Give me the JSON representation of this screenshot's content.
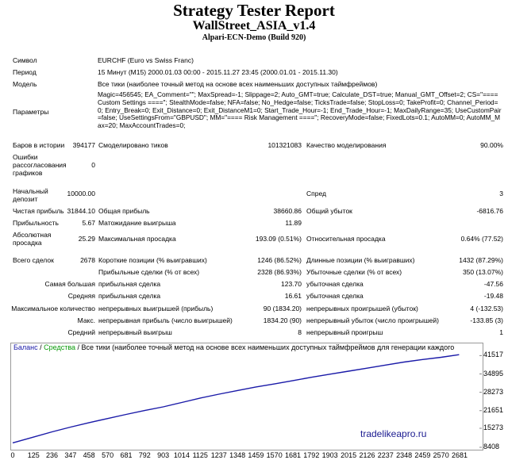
{
  "report": {
    "title": "Strategy Tester Report",
    "expert": "WallStreet_ASIA_v1.4",
    "server": "Alpari-ECN-Demo (Build 920)"
  },
  "info": {
    "symbol_label": "Символ",
    "symbol_value": "EURCHF (Euro vs Swiss Franc)",
    "period_label": "Период",
    "period_value": "15 Минут (M15) 2000.01.03 00:00 - 2015.11.27 23:45 (2000.01.01 - 2015.11.30)",
    "model_label": "Модель",
    "model_value": "Все тики (наиболее точный метод на основе всех наименьших доступных таймфреймов)",
    "params_label": "Параметры",
    "params_value": "Magic=456545; EA_Comment=\"\"; MaxSpread=-1; Slippage=2; Auto_GMT=true; Calculate_DST=true; Manual_GMT_Offset=2; CS=\"==== Custom Settings ====\"; StealthMode=false; NFA=false; No_Hedge=false; TicksTrade=false; StopLoss=0; TakeProfit=0; Channel_Period=0; Entry_Break=0; Exit_Distance=0; Exit_DistanceM1=0; Start_Trade_Hour=-1; End_Trade_Hour=-1; MaxDailyRange=35; UseCustomPair=false; UseSettingsFrom=\"GBPUSD\"; MM=\"==== Risk Management ====\"; RecoveryMode=false; FixedLots=0.1; AutoMM=0; AutoMM_Max=20; MaxAccountTrades=0;"
  },
  "stats": {
    "bars_label": "Баров в истории",
    "bars_value": "394177",
    "ticks_label": "Смоделировано тиков",
    "ticks_value": "101321083",
    "quality_label": "Качество моделирования",
    "quality_value": "90.00%",
    "errors_label": "Ошибки рассогласования графиков",
    "errors_value": "0",
    "deposit_label": "Начальный депозит",
    "deposit_value": "10000.00",
    "spread_label": "Спред",
    "spread_value": "3",
    "netprofit_label": "Чистая прибыль",
    "netprofit_value": "31844.10",
    "grossprofit_label": "Общая прибыль",
    "grossprofit_value": "38660.86",
    "grossloss_label": "Общий убыток",
    "grossloss_value": "-6816.76",
    "pf_label": "Прибыльность",
    "pf_value": "5.67",
    "expected_label": "Матожидание выигрыша",
    "expected_value": "11.89",
    "absdd_label": "Абсолютная просадка",
    "absdd_value": "25.29",
    "maxdd_label": "Максимальная просадка",
    "maxdd_value": "193.09 (0.51%)",
    "reldd_label": "Относительная просадка",
    "reldd_value": "0.64% (77.52)",
    "trades_label": "Всего сделок",
    "trades_value": "2678",
    "short_label": "Короткие позиции (% выигравших)",
    "short_value": "1246 (86.52%)",
    "long_label": "Длинные позиции (% выигравших)",
    "long_value": "1432 (87.29%)",
    "profit_trades_label": "Прибыльные сделки (% от всех)",
    "profit_trades_value": "2328 (86.93%)",
    "loss_trades_label": "Убыточные сделки (% от всех)",
    "loss_trades_value": "350 (13.07%)",
    "largest_label": "Самая большая",
    "largest_profit_label": "прибыльная сделка",
    "largest_profit_value": "123.70",
    "largest_loss_label": "убыточная сделка",
    "largest_loss_value": "-47.56",
    "average_label": "Средняя",
    "average_profit_label": "прибыльная сделка",
    "average_profit_value": "16.61",
    "average_loss_label": "убыточная сделка",
    "average_loss_value": "-19.48",
    "maxcount_label": "Максимальное количество",
    "maxcons_wins_label": "непрерывных выигрышей (прибыль)",
    "maxcons_wins_value": "90 (1834.20)",
    "maxcons_losses_label": "непрерывных проигрышей (убыток)",
    "maxcons_losses_value": "4 (-132.53)",
    "maximal_label": "Макс.",
    "maxcons_profit_label": "непрерывная прибыль (число выигрышей)",
    "maxcons_profit_value": "1834.20 (90)",
    "maxcons_loss_label": "непрерывный убыток (число проигрышей)",
    "maxcons_loss_value": "-133.85 (3)",
    "avgcons_label": "Средний",
    "avgcons_wins_label": "непрерывный выигрыш",
    "avgcons_wins_value": "8",
    "avgcons_losses_label": "непрерывный проигрыш",
    "avgcons_losses_value": "1"
  },
  "chart_head": {
    "balance": "Баланс",
    "sep1": " / ",
    "equity": "Средства",
    "sep2": " / ",
    "model": "Все тики (наиболее точный метод на основе всех наименьших доступных таймфреймов для генерации каждого"
  },
  "watermark": "tradelikeapro.ru",
  "chart_data": {
    "type": "line",
    "title": "",
    "xlabel": "",
    "ylabel": "",
    "x_ticks": [
      0,
      125,
      236,
      347,
      458,
      570,
      681,
      792,
      903,
      1014,
      1125,
      1237,
      1348,
      1459,
      1570,
      1681,
      1792,
      1903,
      2015,
      2126,
      2237,
      2348,
      2459,
      2570,
      2681
    ],
    "y_ticks": [
      "8408",
      "15273",
      "21651",
      "28273",
      "34895",
      "41517"
    ],
    "xlim": [
      0,
      2800
    ],
    "ylim": [
      8408,
      42200
    ],
    "series": [
      {
        "name": "Баланс",
        "color": "#1a1aa8",
        "x": [
          0,
          125,
          236,
          347,
          458,
          570,
          681,
          792,
          903,
          1014,
          1125,
          1237,
          1348,
          1459,
          1570,
          1681,
          1792,
          1903,
          2015,
          2126,
          2237,
          2348,
          2459,
          2570,
          2678
        ],
        "y": [
          10000,
          12100,
          14000,
          15700,
          17300,
          18800,
          20300,
          21700,
          23000,
          24600,
          26200,
          27600,
          28900,
          30200,
          31300,
          32500,
          33700,
          34800,
          35900,
          37000,
          38100,
          39200,
          40100,
          40900,
          41844
        ]
      }
    ],
    "grid": false
  }
}
